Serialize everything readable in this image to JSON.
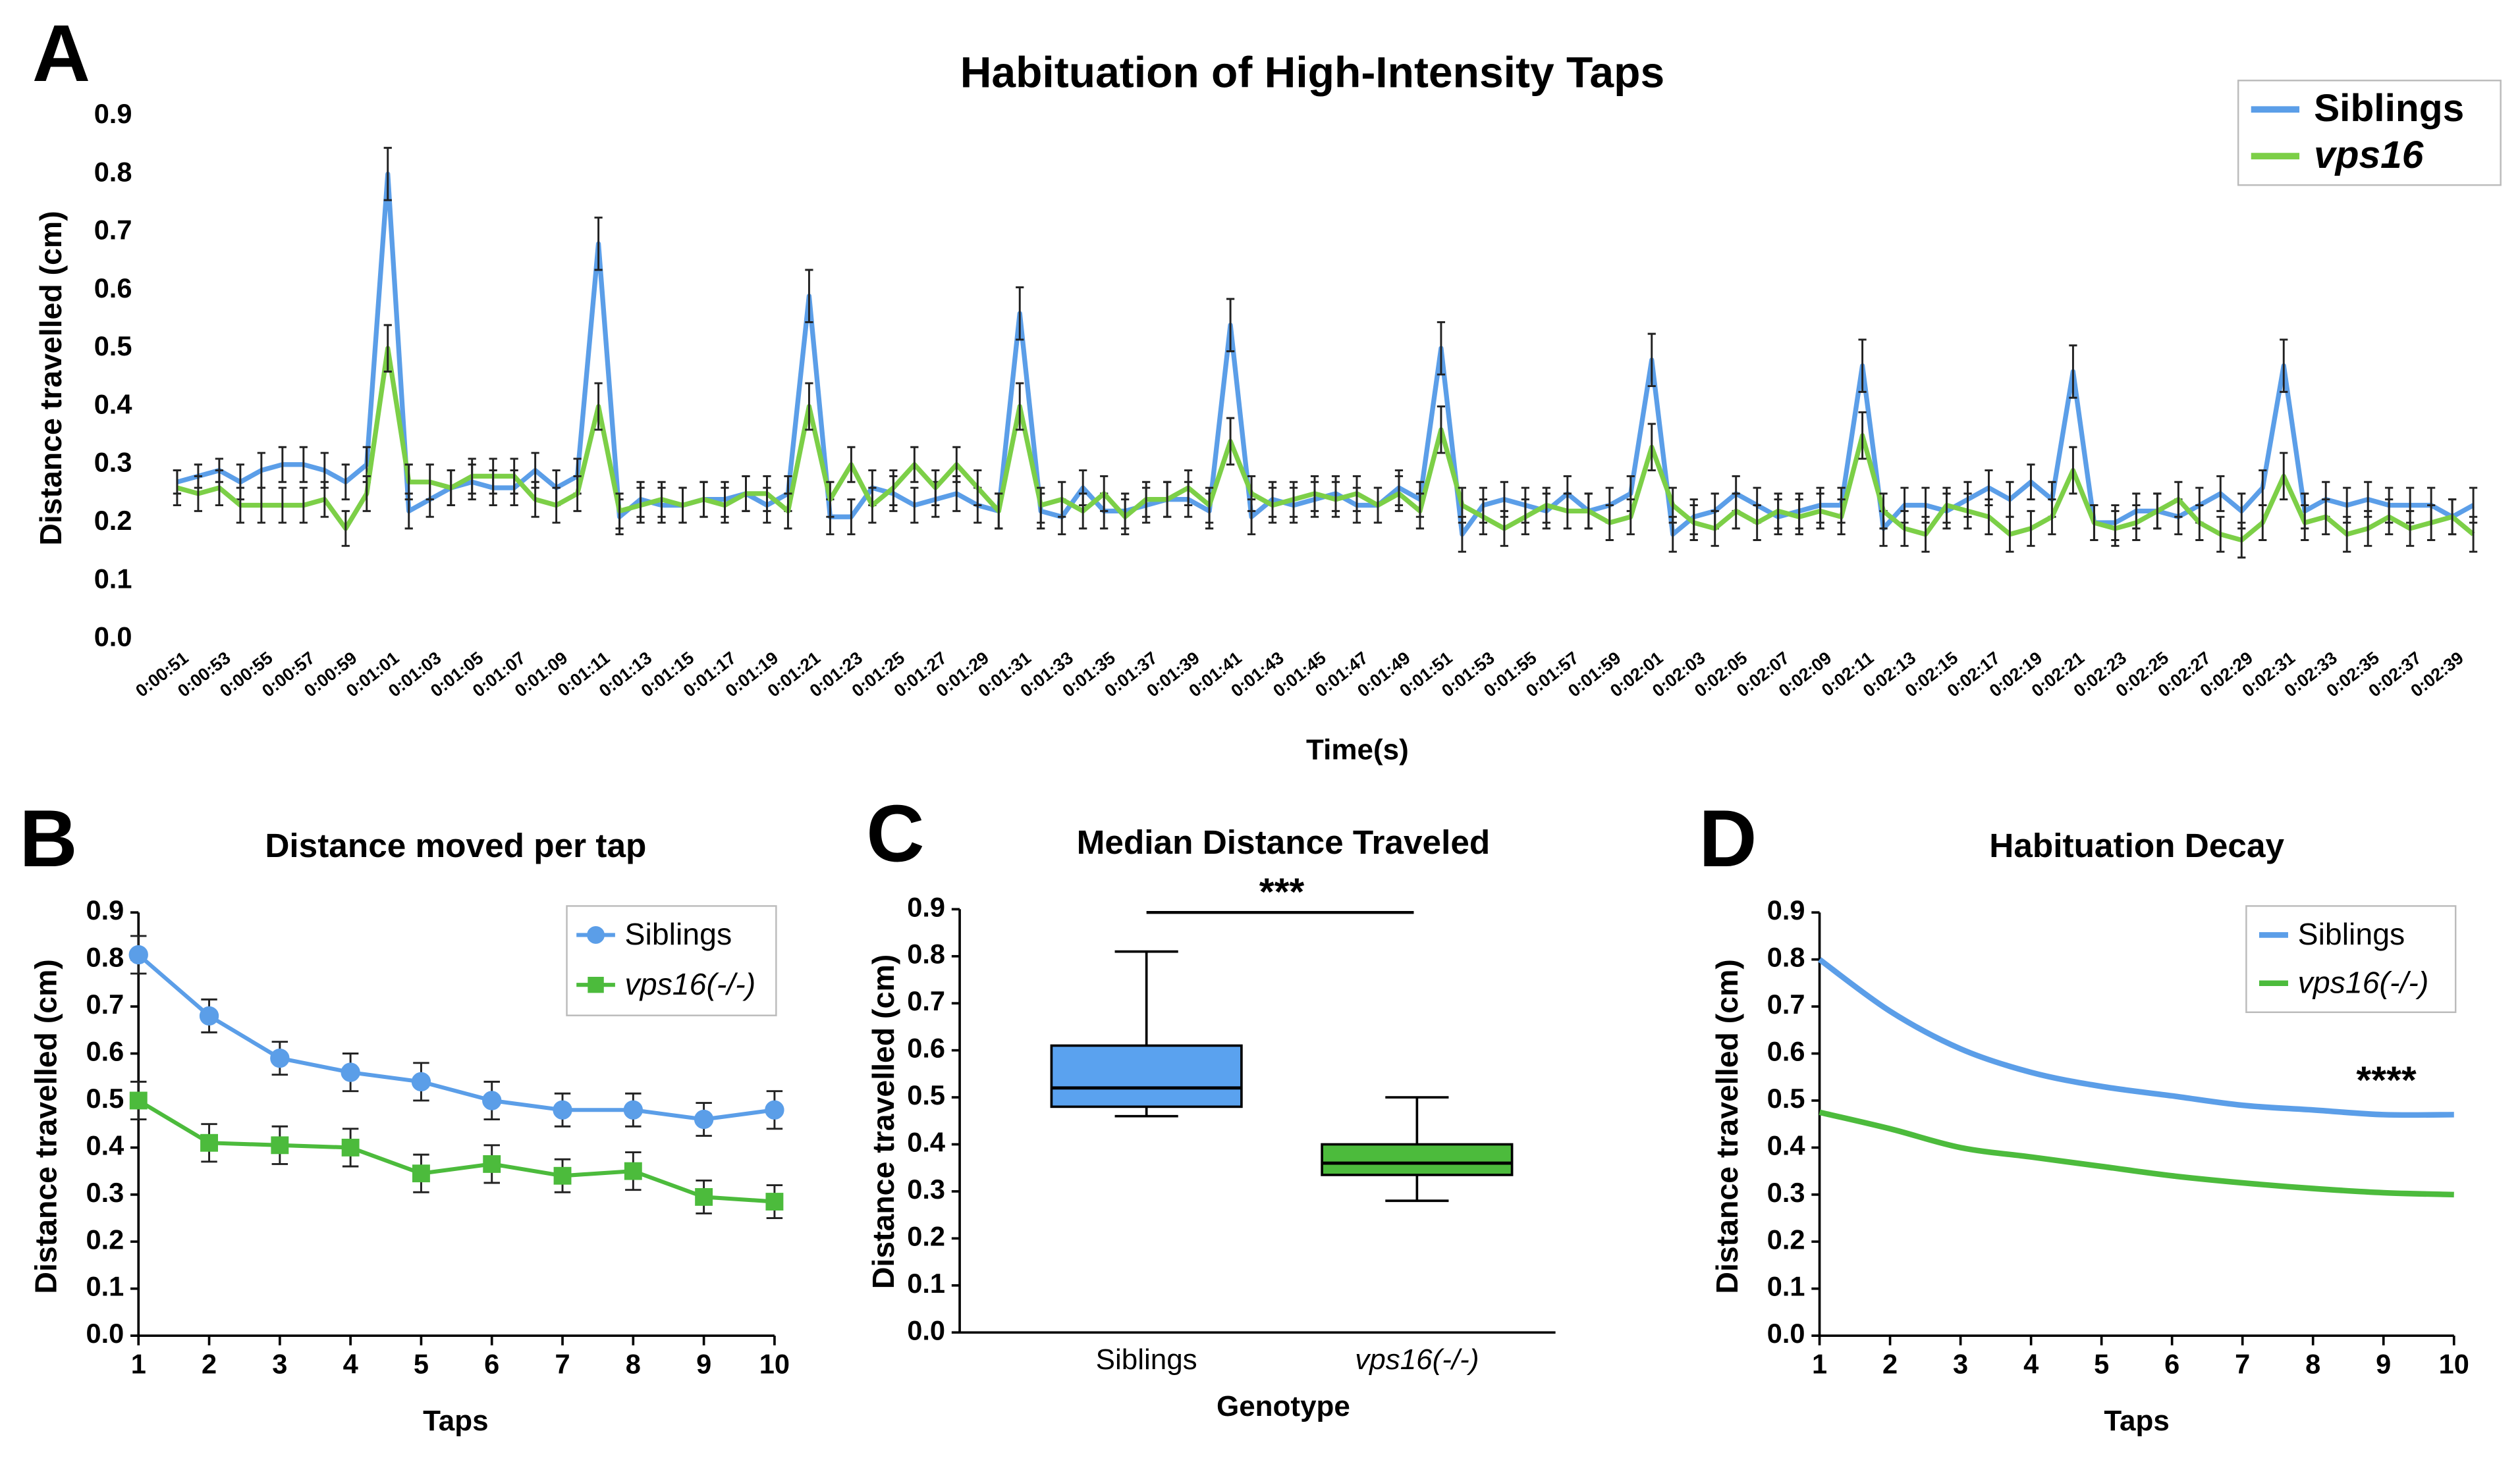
{
  "chart_data": [
    {
      "type": "line",
      "panel_label": "A",
      "title": "Habituation of High-Intensity Taps",
      "xlabel": "Time(s)",
      "ylabel": "Distance travelled (cm)",
      "categories": [
        "0:00:51",
        null,
        "0:00:53",
        null,
        "0:00:55",
        null,
        "0:00:57",
        null,
        "0:00:59",
        null,
        "0:01:01",
        null,
        "0:01:03",
        null,
        "0:01:05",
        null,
        "0:01:07",
        null,
        "0:01:09",
        null,
        "0:01:11",
        null,
        "0:01:13",
        null,
        "0:01:15",
        null,
        "0:01:17",
        null,
        "0:01:19",
        null,
        "0:01:21",
        null,
        "0:01:23",
        null,
        "0:01:25",
        null,
        "0:01:27",
        null,
        "0:01:29",
        null,
        "0:01:31",
        null,
        "0:01:33",
        null,
        "0:01:35",
        null,
        "0:01:37",
        null,
        "0:01:39",
        null,
        "0:01:41",
        null,
        "0:01:43",
        null,
        "0:01:45",
        null,
        "0:01:47",
        null,
        "0:01:49",
        null,
        "0:01:51",
        null,
        "0:01:53",
        null,
        "0:01:55",
        null,
        "0:01:57",
        null,
        "0:01:59",
        null,
        "0:02:01",
        null,
        "0:02:03",
        null,
        "0:02:05",
        null,
        "0:02:07",
        null,
        "0:02:09",
        null,
        "0:02:11",
        null,
        "0:02:13",
        null,
        "0:02:15",
        null,
        "0:02:17",
        null,
        "0:02:19",
        null,
        "0:02:21",
        null,
        "0:02:23",
        null,
        "0:02:25",
        null,
        "0:02:27",
        null,
        "0:02:29",
        null,
        "0:02:31",
        null,
        "0:02:33",
        null,
        "0:02:35",
        null,
        "0:02:37",
        null,
        "0:02:39",
        null
      ],
      "series": [
        {
          "name": "Siblings",
          "color": "#5b9ee8",
          "values": [
            0.27,
            0.28,
            0.29,
            0.27,
            0.29,
            0.3,
            0.3,
            0.29,
            0.27,
            0.3,
            0.8,
            0.22,
            0.24,
            0.26,
            0.27,
            0.26,
            0.26,
            0.29,
            0.26,
            0.28,
            0.68,
            0.21,
            0.24,
            0.23,
            0.23,
            0.24,
            0.24,
            0.25,
            0.23,
            0.25,
            0.59,
            0.21,
            0.21,
            0.26,
            0.25,
            0.23,
            0.24,
            0.25,
            0.23,
            0.22,
            0.56,
            0.22,
            0.21,
            0.26,
            0.22,
            0.22,
            0.23,
            0.24,
            0.24,
            0.22,
            0.54,
            0.21,
            0.24,
            0.23,
            0.24,
            0.25,
            0.23,
            0.23,
            0.26,
            0.24,
            0.5,
            0.18,
            0.23,
            0.24,
            0.23,
            0.22,
            0.25,
            0.22,
            0.23,
            0.25,
            0.48,
            0.18,
            0.21,
            0.22,
            0.25,
            0.23,
            0.21,
            0.22,
            0.23,
            0.23,
            0.47,
            0.19,
            0.23,
            0.23,
            0.22,
            0.24,
            0.26,
            0.24,
            0.27,
            0.24,
            0.46,
            0.2,
            0.2,
            0.22,
            0.22,
            0.21,
            0.23,
            0.25,
            0.22,
            0.26,
            0.47,
            0.22,
            0.24,
            0.23,
            0.24,
            0.23,
            0.23,
            0.23,
            0.21,
            0.23
          ],
          "errors": [
            0.02,
            0.02,
            0.02,
            0.03,
            0.03,
            0.03,
            0.03,
            0.03,
            0.03,
            0.03,
            0.045,
            0.03,
            0.03,
            0.03,
            0.03,
            0.03,
            0.03,
            0.03,
            0.03,
            0.03,
            0.045,
            0.03,
            0.03,
            0.03,
            0.03,
            0.03,
            0.03,
            0.03,
            0.03,
            0.03,
            0.045,
            0.03,
            0.03,
            0.03,
            0.03,
            0.03,
            0.03,
            0.03,
            0.03,
            0.03,
            0.045,
            0.03,
            0.03,
            0.03,
            0.03,
            0.03,
            0.03,
            0.03,
            0.03,
            0.03,
            0.045,
            0.03,
            0.03,
            0.03,
            0.03,
            0.03,
            0.03,
            0.03,
            0.03,
            0.03,
            0.045,
            0.03,
            0.03,
            0.03,
            0.03,
            0.03,
            0.03,
            0.03,
            0.03,
            0.03,
            0.045,
            0.03,
            0.03,
            0.03,
            0.03,
            0.03,
            0.03,
            0.03,
            0.03,
            0.03,
            0.045,
            0.03,
            0.03,
            0.03,
            0.03,
            0.03,
            0.03,
            0.03,
            0.03,
            0.03,
            0.045,
            0.03,
            0.03,
            0.03,
            0.03,
            0.03,
            0.03,
            0.03,
            0.03,
            0.03,
            0.045,
            0.03,
            0.03,
            0.03,
            0.03,
            0.03,
            0.03,
            0.03,
            0.03,
            0.03
          ]
        },
        {
          "name": "vps16",
          "color": "#7ccf47",
          "values": [
            0.26,
            0.25,
            0.26,
            0.23,
            0.23,
            0.23,
            0.23,
            0.24,
            0.19,
            0.25,
            0.5,
            0.27,
            0.27,
            0.26,
            0.28,
            0.28,
            0.28,
            0.24,
            0.23,
            0.25,
            0.4,
            0.22,
            0.23,
            0.24,
            0.23,
            0.24,
            0.23,
            0.25,
            0.25,
            0.22,
            0.4,
            0.24,
            0.3,
            0.23,
            0.26,
            0.3,
            0.26,
            0.3,
            0.26,
            0.22,
            0.4,
            0.23,
            0.24,
            0.22,
            0.25,
            0.21,
            0.24,
            0.24,
            0.26,
            0.23,
            0.34,
            0.25,
            0.23,
            0.24,
            0.25,
            0.24,
            0.25,
            0.23,
            0.25,
            0.22,
            0.36,
            0.23,
            0.21,
            0.19,
            0.21,
            0.23,
            0.22,
            0.22,
            0.2,
            0.21,
            0.33,
            0.23,
            0.2,
            0.19,
            0.22,
            0.2,
            0.22,
            0.21,
            0.22,
            0.21,
            0.35,
            0.22,
            0.19,
            0.18,
            0.23,
            0.22,
            0.21,
            0.18,
            0.19,
            0.21,
            0.29,
            0.2,
            0.19,
            0.2,
            0.22,
            0.24,
            0.2,
            0.18,
            0.17,
            0.2,
            0.28,
            0.2,
            0.21,
            0.18,
            0.19,
            0.21,
            0.19,
            0.2,
            0.21,
            0.18
          ],
          "errors": [
            0.03,
            0.03,
            0.03,
            0.03,
            0.03,
            0.03,
            0.03,
            0.03,
            0.03,
            0.03,
            0.04,
            0.03,
            0.03,
            0.03,
            0.03,
            0.03,
            0.03,
            0.03,
            0.03,
            0.03,
            0.04,
            0.03,
            0.03,
            0.03,
            0.03,
            0.03,
            0.03,
            0.03,
            0.03,
            0.03,
            0.04,
            0.03,
            0.03,
            0.03,
            0.03,
            0.03,
            0.03,
            0.03,
            0.03,
            0.03,
            0.04,
            0.03,
            0.03,
            0.03,
            0.03,
            0.03,
            0.03,
            0.03,
            0.03,
            0.03,
            0.04,
            0.03,
            0.03,
            0.03,
            0.03,
            0.03,
            0.03,
            0.03,
            0.03,
            0.03,
            0.04,
            0.03,
            0.03,
            0.03,
            0.03,
            0.03,
            0.03,
            0.03,
            0.03,
            0.03,
            0.04,
            0.03,
            0.03,
            0.03,
            0.03,
            0.03,
            0.03,
            0.03,
            0.03,
            0.03,
            0.04,
            0.03,
            0.03,
            0.03,
            0.03,
            0.03,
            0.03,
            0.03,
            0.03,
            0.03,
            0.04,
            0.03,
            0.03,
            0.03,
            0.03,
            0.03,
            0.03,
            0.03,
            0.03,
            0.03,
            0.04,
            0.03,
            0.03,
            0.03,
            0.03,
            0.03,
            0.03,
            0.03,
            0.03,
            0.03
          ]
        }
      ],
      "ylim": [
        0,
        0.9
      ],
      "yticks": [
        {
          "value": 0,
          "label": "0.0"
        },
        0.1,
        0.2,
        0.3,
        0.4,
        0.5,
        0.6,
        0.7,
        0.8,
        0.9
      ],
      "legend": "upper right"
    },
    {
      "type": "line",
      "panel_label": "B",
      "title": "Distance moved per tap",
      "xlabel": "Taps",
      "ylabel": "Distance travelled (cm)",
      "x": [
        1,
        2,
        3,
        4,
        5,
        6,
        7,
        8,
        9,
        10
      ],
      "series": [
        {
          "name": "Siblings",
          "color": "#5b9ee8",
          "marker": "circle",
          "values": [
            0.81,
            0.68,
            0.59,
            0.56,
            0.54,
            0.5,
            0.48,
            0.48,
            0.46,
            0.48
          ],
          "errors": [
            0.04,
            0.035,
            0.035,
            0.04,
            0.04,
            0.04,
            0.035,
            0.035,
            0.035,
            0.04
          ]
        },
        {
          "name": "vps16(-/-)",
          "color": "#4cbb3c",
          "marker": "square",
          "values": [
            0.5,
            0.41,
            0.405,
            0.4,
            0.345,
            0.365,
            0.34,
            0.35,
            0.295,
            0.285
          ],
          "errors": [
            0.04,
            0.04,
            0.04,
            0.04,
            0.04,
            0.04,
            0.035,
            0.04,
            0.035,
            0.035
          ]
        }
      ],
      "xlim": [
        1,
        10
      ],
      "xticks": [
        1,
        2,
        3,
        4,
        5,
        6,
        7,
        8,
        9,
        10
      ],
      "ylim": [
        0,
        0.9
      ],
      "yticks": [
        {
          "value": 0,
          "label": "0.0"
        },
        0.1,
        0.2,
        0.3,
        0.4,
        0.5,
        0.6,
        0.7,
        0.8,
        0.9
      ],
      "legend": "upper right"
    },
    {
      "type": "box",
      "panel_label": "C",
      "title": "Median Distance Traveled",
      "xlabel": "Genotype",
      "ylabel": "Distance travelled (cm)",
      "categories": [
        "Siblings",
        "vps16(-/-)"
      ],
      "colors": [
        "#5aa2ef",
        "#4cbb3c"
      ],
      "min": [
        0.46,
        0.28
      ],
      "q1": [
        0.48,
        0.335
      ],
      "median": [
        0.52,
        0.36
      ],
      "q3": [
        0.61,
        0.4
      ],
      "max": [
        0.81,
        0.5
      ],
      "annotation": "***",
      "ylim": [
        0,
        0.9
      ],
      "yticks": [
        {
          "value": 0,
          "label": "0.0"
        },
        0.1,
        0.2,
        0.3,
        0.4,
        0.5,
        0.6,
        0.7,
        0.8,
        0.9
      ]
    },
    {
      "type": "line",
      "panel_label": "D",
      "title": "Habituation Decay",
      "xlabel": "Taps",
      "ylabel": "Distance travelled (cm)",
      "smooth": true,
      "x": [
        1,
        2,
        3,
        4,
        5,
        6,
        7,
        8,
        9,
        10
      ],
      "series": [
        {
          "name": "Siblings",
          "color": "#5b9ee8",
          "values": [
            0.8,
            0.69,
            0.61,
            0.56,
            0.53,
            0.51,
            0.49,
            0.48,
            0.47,
            0.47
          ]
        },
        {
          "name": "vps16(-/-)",
          "color": "#4cbb3c",
          "values": [
            0.475,
            0.44,
            0.4,
            0.38,
            0.36,
            0.34,
            0.325,
            0.313,
            0.304,
            0.3
          ]
        }
      ],
      "annotation": "****",
      "xlim": [
        1,
        10
      ],
      "xticks": [
        1,
        2,
        3,
        4,
        5,
        6,
        7,
        8,
        9,
        10
      ],
      "ylim": [
        0,
        0.9
      ],
      "yticks": [
        {
          "value": 0,
          "label": "0.0"
        },
        0.1,
        0.2,
        0.3,
        0.4,
        0.5,
        0.6,
        0.7,
        0.8,
        0.9
      ],
      "legend": "upper right"
    }
  ]
}
